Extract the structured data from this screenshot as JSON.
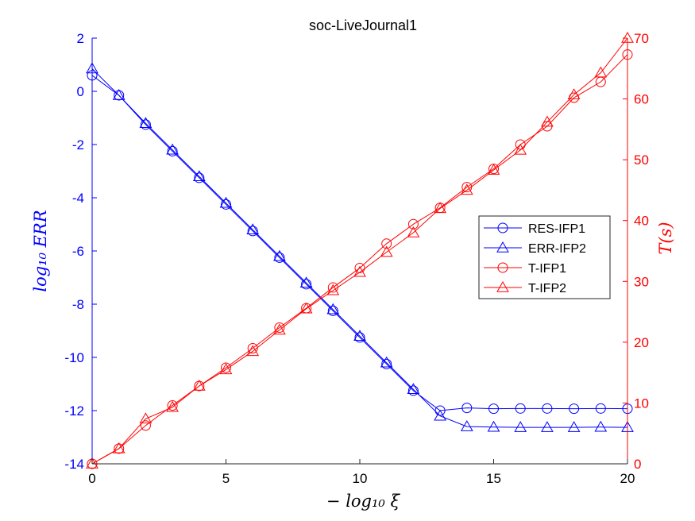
{
  "chart_data": {
    "type": "line",
    "title": "soc-LiveJournal1",
    "xlabel": "− log₁₀ ξ",
    "ylabel_left": "log₁₀ ERR",
    "ylabel_right": "T(s)",
    "xlim": [
      0,
      20
    ],
    "ylim_left": [
      -14,
      2
    ],
    "ylim_right": [
      0,
      70
    ],
    "x_ticks": [
      "0",
      "5",
      "10",
      "15",
      "20"
    ],
    "y_left_ticks": [
      "2",
      "0",
      "-2",
      "-4",
      "-6",
      "-8",
      "-10",
      "-12",
      "-14"
    ],
    "y_right_ticks": [
      "70",
      "60",
      "50",
      "40",
      "30",
      "20",
      "10",
      "0"
    ],
    "grid": false,
    "legend_position": "right",
    "x": [
      0,
      1,
      2,
      3,
      4,
      5,
      6,
      7,
      8,
      9,
      10,
      11,
      12,
      13,
      14,
      15,
      16,
      17,
      18,
      19,
      20
    ],
    "series": [
      {
        "name": "RES-IFP1",
        "axis": "left",
        "color": "#0000ff",
        "marker": "circle",
        "values": [
          0.6,
          -0.15,
          -1.25,
          -2.25,
          -3.25,
          -4.25,
          -5.25,
          -6.25,
          -7.25,
          -8.25,
          -9.25,
          -10.25,
          -11.25,
          -12.0,
          -11.9,
          -11.93,
          -11.92,
          -11.92,
          -11.93,
          -11.92,
          -11.93
        ]
      },
      {
        "name": "ERR-IFP2",
        "axis": "left",
        "color": "#0000ff",
        "marker": "triangle",
        "values": [
          0.85,
          -0.15,
          -1.2,
          -2.2,
          -3.2,
          -4.2,
          -5.2,
          -6.2,
          -7.2,
          -8.2,
          -9.2,
          -10.2,
          -11.2,
          -12.2,
          -12.6,
          -12.62,
          -12.63,
          -12.63,
          -12.63,
          -12.62,
          -12.63
        ]
      },
      {
        "name": "T-IFP1",
        "axis": "right",
        "color": "#ff0000",
        "marker": "circle",
        "values": [
          0,
          2.5,
          6.3,
          9.6,
          12.8,
          15.8,
          19.0,
          22.4,
          25.6,
          29.0,
          32.2,
          36.2,
          39.4,
          42.1,
          45.5,
          48.5,
          52.5,
          55.5,
          60.2,
          62.8,
          67.3
        ]
      },
      {
        "name": "T-IFP2",
        "axis": "right",
        "color": "#ff0000",
        "marker": "triangle",
        "values": [
          0,
          2.5,
          7.4,
          9.3,
          12.8,
          15.5,
          18.5,
          22.0,
          25.5,
          28.5,
          31.5,
          34.8,
          38.0,
          42.0,
          45.0,
          48.3,
          51.6,
          56.2,
          60.7,
          64.3,
          70.0
        ]
      }
    ]
  }
}
